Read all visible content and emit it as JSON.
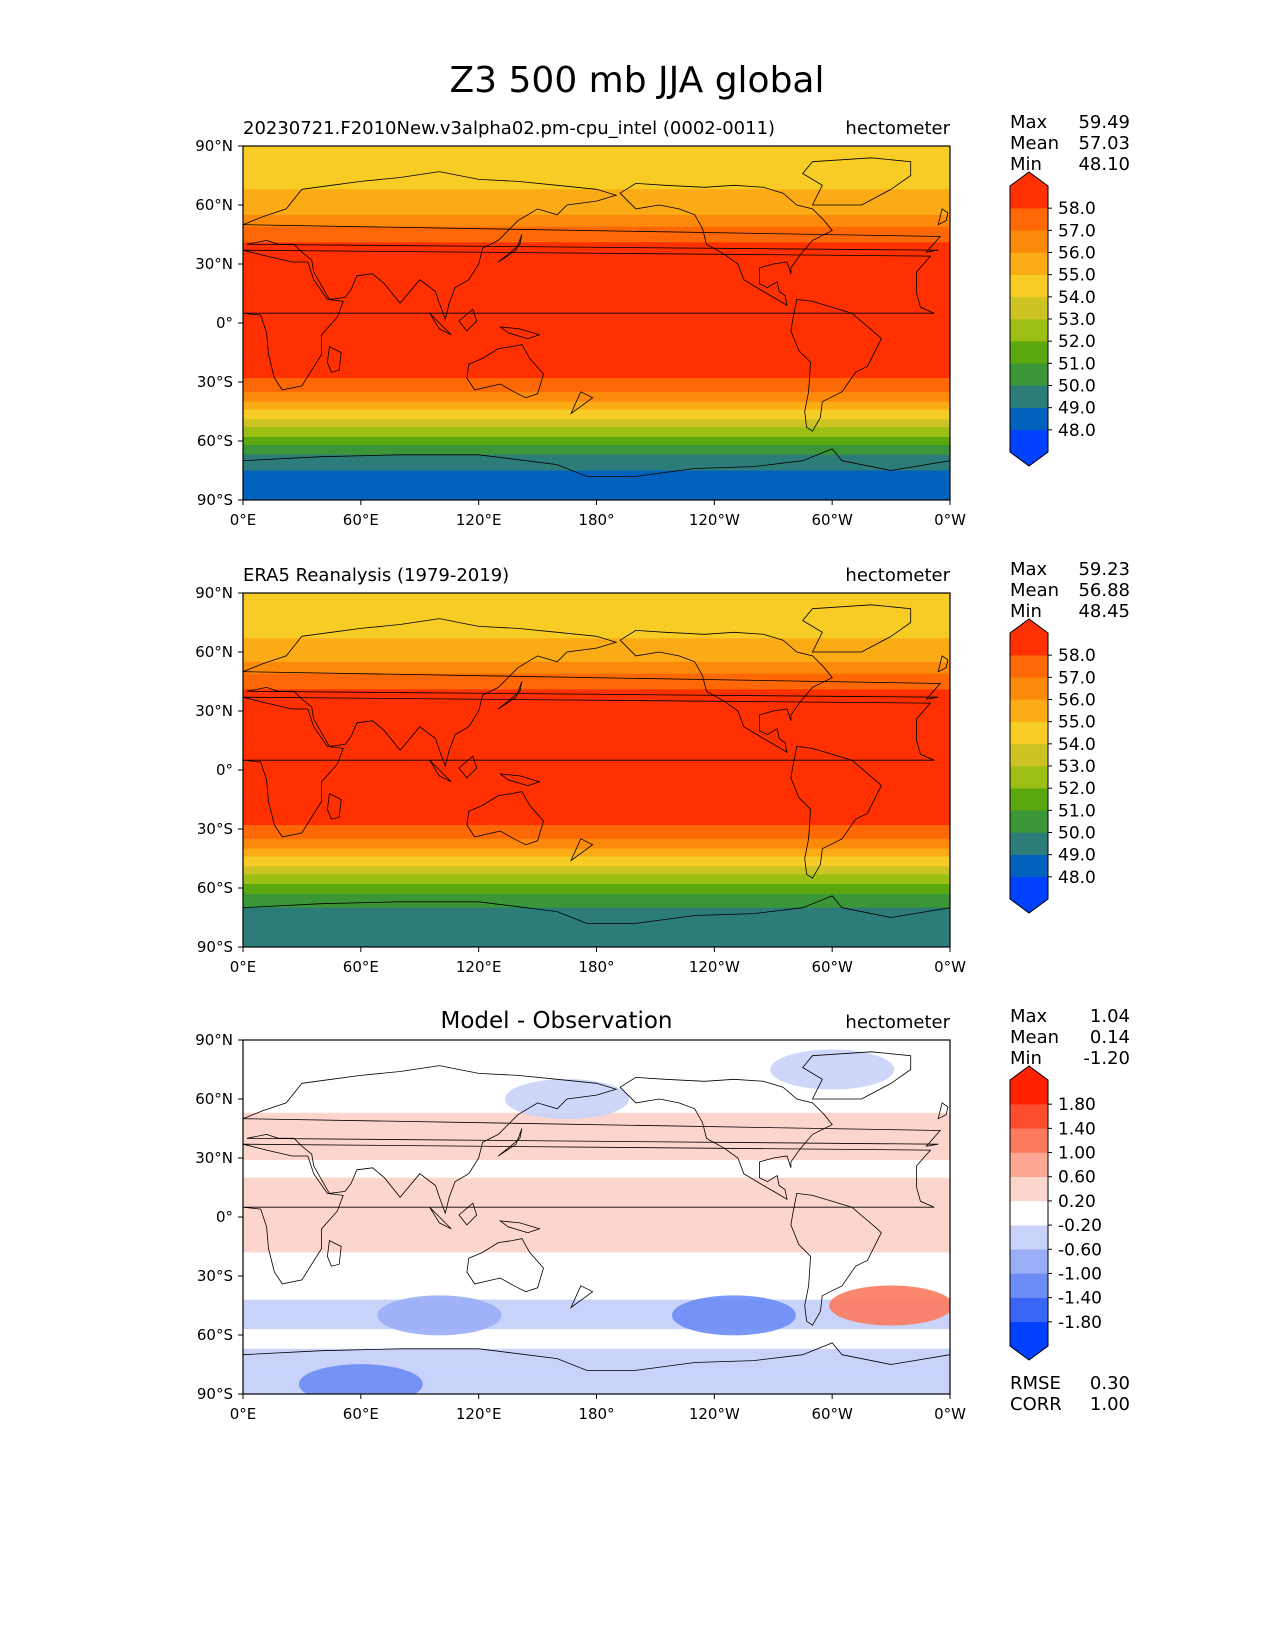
{
  "figure_title": "Z3 500 mb JJA global",
  "chart_data": [
    {
      "type": "heatmap",
      "panel": "test",
      "title_left": "20230721.F2010New.v3alpha02.pm-cpu_intel (0002-0011)",
      "title_center": "",
      "units": "hectometer",
      "stats": [
        {
          "label": "Max",
          "value": "59.49"
        },
        {
          "label": "Mean",
          "value": "57.03"
        },
        {
          "label": "Min",
          "value": "48.10"
        }
      ],
      "levels": [
        "48.0",
        "49.0",
        "50.0",
        "51.0",
        "52.0",
        "53.0",
        "54.0",
        "55.0",
        "56.0",
        "57.0",
        "58.0"
      ],
      "colors": [
        "#0040FF",
        "#0062BD",
        "#2C7D79",
        "#3B9637",
        "#5BA70E",
        "#9CBF15",
        "#CDC423",
        "#F7CC24",
        "#FBAB16",
        "#FC8A0A",
        "#FE6805",
        "#FF3001"
      ],
      "lat_profile": [
        {
          "lat": 90,
          "value": 54.6
        },
        {
          "lat": 80,
          "value": 54.4
        },
        {
          "lat": 70,
          "value": 54.9
        },
        {
          "lat": 60,
          "value": 55.5
        },
        {
          "lat": 55,
          "value": 56.0
        },
        {
          "lat": 50,
          "value": 56.8
        },
        {
          "lat": 45,
          "value": 57.5
        },
        {
          "lat": 40,
          "value": 58.1
        },
        {
          "lat": 30,
          "value": 58.6
        },
        {
          "lat": 0,
          "value": 58.8
        },
        {
          "lat": -20,
          "value": 58.5
        },
        {
          "lat": -27,
          "value": 58.1
        },
        {
          "lat": -32,
          "value": 57.5
        },
        {
          "lat": -37,
          "value": 56.5
        },
        {
          "lat": -42,
          "value": 55.5
        },
        {
          "lat": -47,
          "value": 54.4
        },
        {
          "lat": -52,
          "value": 53.3
        },
        {
          "lat": -57,
          "value": 52.2
        },
        {
          "lat": -62,
          "value": 51.1
        },
        {
          "lat": -67,
          "value": 50.0
        },
        {
          "lat": -72,
          "value": 49.3
        },
        {
          "lat": -80,
          "value": 48.6
        },
        {
          "lat": -90,
          "value": 48.3
        }
      ],
      "xlim": [
        0,
        360
      ],
      "ylim": [
        -90,
        90
      ],
      "xticks": [
        "0°E",
        "60°E",
        "120°E",
        "180°",
        "120°W",
        "60°W",
        "0°W"
      ],
      "yticks": [
        "90°N",
        "60°N",
        "30°N",
        "0°",
        "30°S",
        "60°S",
        "90°S"
      ]
    },
    {
      "type": "heatmap",
      "panel": "reference",
      "title_left": "ERA5 Reanalysis (1979-2019)",
      "title_center": "",
      "units": "hectometer",
      "stats": [
        {
          "label": "Max",
          "value": "59.23"
        },
        {
          "label": "Mean",
          "value": "56.88"
        },
        {
          "label": "Min",
          "value": "48.45"
        }
      ],
      "levels": [
        "48.0",
        "49.0",
        "50.0",
        "51.0",
        "52.0",
        "53.0",
        "54.0",
        "55.0",
        "56.0",
        "57.0",
        "58.0"
      ],
      "colors": [
        "#0040FF",
        "#0062BD",
        "#2C7D79",
        "#3B9637",
        "#5BA70E",
        "#9CBF15",
        "#CDC423",
        "#F7CC24",
        "#FBAB16",
        "#FC8A0A",
        "#FE6805",
        "#FF3001"
      ],
      "lat_profile": [
        {
          "lat": 90,
          "value": 54.6
        },
        {
          "lat": 80,
          "value": 54.4
        },
        {
          "lat": 70,
          "value": 54.8
        },
        {
          "lat": 60,
          "value": 55.4
        },
        {
          "lat": 55,
          "value": 56.0
        },
        {
          "lat": 50,
          "value": 56.8
        },
        {
          "lat": 45,
          "value": 57.5
        },
        {
          "lat": 40,
          "value": 58.1
        },
        {
          "lat": 30,
          "value": 58.6
        },
        {
          "lat": 0,
          "value": 58.8
        },
        {
          "lat": -20,
          "value": 58.5
        },
        {
          "lat": -27,
          "value": 58.1
        },
        {
          "lat": -32,
          "value": 57.5
        },
        {
          "lat": -37,
          "value": 56.5
        },
        {
          "lat": -42,
          "value": 55.5
        },
        {
          "lat": -47,
          "value": 54.4
        },
        {
          "lat": -52,
          "value": 53.3
        },
        {
          "lat": -57,
          "value": 52.2
        },
        {
          "lat": -62,
          "value": 51.1
        },
        {
          "lat": -67,
          "value": 50.4
        },
        {
          "lat": -72,
          "value": 49.8
        },
        {
          "lat": -80,
          "value": 49.4
        },
        {
          "lat": -90,
          "value": 49.2
        }
      ],
      "xlim": [
        0,
        360
      ],
      "ylim": [
        -90,
        90
      ],
      "xticks": [
        "0°E",
        "60°E",
        "120°E",
        "180°",
        "120°W",
        "60°W",
        "0°W"
      ],
      "yticks": [
        "90°N",
        "60°N",
        "30°N",
        "0°",
        "30°S",
        "60°S",
        "90°S"
      ]
    },
    {
      "type": "heatmap",
      "panel": "difference",
      "title_left": "",
      "title_center": "Model - Observation",
      "units": "hectometer",
      "stats": [
        {
          "label": "Max",
          "value": "1.04"
        },
        {
          "label": "Mean",
          "value": "0.14"
        },
        {
          "label": "Min",
          "value": "-1.20"
        }
      ],
      "extra_stats": [
        {
          "label": "RMSE",
          "value": "0.30"
        },
        {
          "label": "CORR",
          "value": "1.00"
        }
      ],
      "levels": [
        "-1.80",
        "-1.40",
        "-1.00",
        "-0.60",
        "-0.20",
        "0.20",
        "0.60",
        "1.00",
        "1.40",
        "1.80"
      ],
      "colors": [
        "#0040FF",
        "#3A66F5",
        "#6C8CF6",
        "#9AAEF8",
        "#C9D3FA",
        "#FFFFFF",
        "#FCD5CD",
        "#FCA694",
        "#FC7A5F",
        "#FC4E2E",
        "#FF2100"
      ],
      "lat_profile": [
        {
          "lat": 90,
          "value": 0.0
        },
        {
          "lat": 70,
          "value": -0.1
        },
        {
          "lat": 60,
          "value": 0.0
        },
        {
          "lat": 50,
          "value": 0.3
        },
        {
          "lat": 35,
          "value": 0.35
        },
        {
          "lat": 25,
          "value": 0.1
        },
        {
          "lat": 15,
          "value": 0.3
        },
        {
          "lat": -10,
          "value": 0.3
        },
        {
          "lat": -25,
          "value": 0.1
        },
        {
          "lat": -35,
          "value": 0.0
        },
        {
          "lat": -45,
          "value": -0.3
        },
        {
          "lat": -55,
          "value": -0.3
        },
        {
          "lat": -62,
          "value": 0.0
        },
        {
          "lat": -70,
          "value": -0.3
        },
        {
          "lat": -80,
          "value": -0.5
        },
        {
          "lat": -90,
          "value": -0.5
        }
      ],
      "anomalies": [
        {
          "lon": 100,
          "lat": -50,
          "value": -1.0
        },
        {
          "lon": 250,
          "lat": -50,
          "value": -1.1
        },
        {
          "lon": 60,
          "lat": -85,
          "value": -1.2
        },
        {
          "lon": 330,
          "lat": -45,
          "value": 1.0
        },
        {
          "lon": 165,
          "lat": 60,
          "value": -0.5
        },
        {
          "lon": 300,
          "lat": 75,
          "value": -0.4
        }
      ],
      "xlim": [
        0,
        360
      ],
      "ylim": [
        -90,
        90
      ],
      "xticks": [
        "0°E",
        "60°E",
        "120°E",
        "180°",
        "120°W",
        "60°W",
        "0°W"
      ],
      "yticks": [
        "90°N",
        "60°N",
        "30°N",
        "0°",
        "30°S",
        "60°S",
        "90°S"
      ]
    }
  ]
}
